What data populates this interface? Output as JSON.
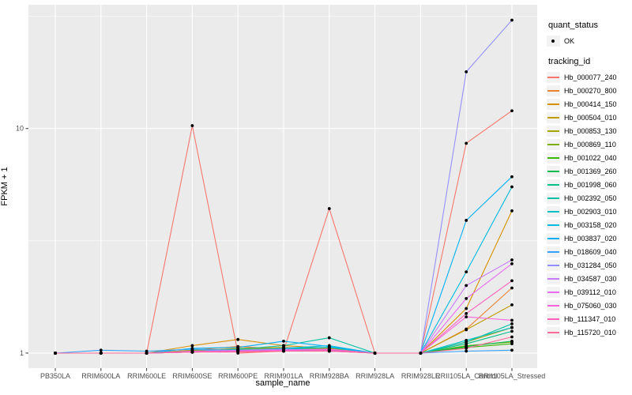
{
  "axes": {
    "xlabel": "sample_name",
    "ylabel": "FPKM + 1",
    "y_tick_labels": [
      "1",
      "10"
    ]
  },
  "legend": {
    "quant_status": {
      "title": "quant_status",
      "items": [
        {
          "label": "OK",
          "marker": "black-point"
        }
      ]
    },
    "tracking_id": {
      "title": "tracking_id"
    }
  },
  "chart_data": {
    "type": "line",
    "title": "",
    "xlabel": "sample_name",
    "ylabel": "FPKM + 1",
    "y_scale": "log10",
    "grid": true,
    "legend_position": "right",
    "panel_bg": "#EBEBEB",
    "grid_color": "#FFFFFF",
    "point_color": "#000000",
    "axis_text_color": "#4D4D4D",
    "y_ticks": [
      1,
      10
    ],
    "y_minor_ticks": [
      3.162,
      31.623
    ],
    "ylim": [
      0.857,
      35.6
    ],
    "x_categories": [
      "PB350LA",
      "RRIM600LA",
      "RRIM600LE",
      "RRIM600SE",
      "RRIM600PE",
      "RRIM901LA",
      "RRIM928BA",
      "RRIM928LA",
      "RRIM928LE",
      "RRII105LA_Control",
      "RRII105LA_Stressed"
    ],
    "series": [
      {
        "name": "Hb_000077_240",
        "color": "#F8766D",
        "values": [
          1,
          1,
          1,
          10.3,
          1,
          1.02,
          4.4,
          1,
          1,
          8.6,
          12.0
        ]
      },
      {
        "name": "Hb_000270_800",
        "color": "#EA8331",
        "values": [
          1,
          1,
          1,
          1.03,
          1.07,
          1.04,
          1.05,
          1,
          1,
          1.28,
          1.95
        ]
      },
      {
        "name": "Hb_000414_150",
        "color": "#D89000",
        "values": [
          1,
          1,
          1,
          1.08,
          1.15,
          1.08,
          1.05,
          1,
          1,
          1.58,
          4.3
        ]
      },
      {
        "name": "Hb_000504_010",
        "color": "#C09B00",
        "values": [
          1,
          1,
          1,
          1.02,
          1.05,
          1.06,
          1.04,
          1,
          1,
          1.27,
          1.64
        ]
      },
      {
        "name": "Hb_000853_130",
        "color": "#A3A500",
        "values": [
          1,
          1,
          1,
          1.03,
          1.04,
          1.05,
          1.06,
          1,
          1,
          1.12,
          1.3
        ]
      },
      {
        "name": "Hb_000869_110",
        "color": "#7CAE00",
        "values": [
          1,
          1,
          1,
          1.02,
          1.03,
          1.03,
          1.04,
          1,
          1,
          1.08,
          1.12
        ]
      },
      {
        "name": "Hb_001022_040",
        "color": "#39B600",
        "values": [
          1,
          1,
          1,
          1.01,
          1.02,
          1.03,
          1.02,
          1,
          1,
          1.06,
          1.1
        ]
      },
      {
        "name": "Hb_001369_260",
        "color": "#00BB4E",
        "values": [
          1,
          1,
          1,
          1.02,
          1.02,
          1.04,
          1.03,
          1,
          1,
          1.07,
          1.13
        ]
      },
      {
        "name": "Hb_001998_060",
        "color": "#00C087",
        "values": [
          1,
          1,
          1,
          1.01,
          1.03,
          1.05,
          1.06,
          1,
          1,
          1.1,
          1.25
        ]
      },
      {
        "name": "Hb_002392_050",
        "color": "#00C1A3",
        "values": [
          1,
          1,
          1,
          1.02,
          1.04,
          1.08,
          1.17,
          1,
          1,
          1.12,
          1.35
        ]
      },
      {
        "name": "Hb_002903_010",
        "color": "#00BFC4",
        "values": [
          1,
          1,
          1,
          1.01,
          1.02,
          1.04,
          1.06,
          1,
          1,
          1.14,
          1.3
        ]
      },
      {
        "name": "Hb_003158_020",
        "color": "#00BAE0",
        "values": [
          1,
          1,
          1,
          1.02,
          1.03,
          1.05,
          1.08,
          1,
          1,
          2.3,
          5.5
        ]
      },
      {
        "name": "Hb_003837_020",
        "color": "#00B0F6",
        "values": [
          1,
          1,
          1,
          1.05,
          1.06,
          1.13,
          1.07,
          1,
          1,
          3.9,
          6.1
        ]
      },
      {
        "name": "Hb_018609_040",
        "color": "#35A2FF",
        "values": [
          1,
          1.03,
          1.02,
          1.04,
          1.03,
          1.02,
          1.02,
          1,
          1,
          1.02,
          1.03
        ]
      },
      {
        "name": "Hb_031284_050",
        "color": "#9590FF",
        "values": [
          1,
          1,
          1,
          1.01,
          1.02,
          1.02,
          1.03,
          1,
          1,
          17.9,
          30.4
        ]
      },
      {
        "name": "Hb_034587_030",
        "color": "#C77CFF",
        "values": [
          1,
          1,
          1,
          1.02,
          1.03,
          1.04,
          1.03,
          1,
          1,
          2.0,
          2.6
        ]
      },
      {
        "name": "Hb_039112_010",
        "color": "#E76BF3",
        "values": [
          1,
          1,
          1,
          1.01,
          1.02,
          1.03,
          1.04,
          1,
          1,
          1.75,
          2.5
        ]
      },
      {
        "name": "Hb_075060_030",
        "color": "#FA62DB",
        "values": [
          1,
          1,
          1,
          1.02,
          1.02,
          1.03,
          1.02,
          1,
          1,
          1.45,
          1.4
        ]
      },
      {
        "name": "Hb_111347_010",
        "color": "#FF62BC",
        "values": [
          1,
          1,
          1,
          1.01,
          1.02,
          1.02,
          1.03,
          1,
          1,
          1.5,
          2.1
        ]
      },
      {
        "name": "Hb_115720_010",
        "color": "#FF6A98",
        "values": [
          1,
          1,
          1,
          1.01,
          1.01,
          1.02,
          1.02,
          1,
          1,
          1.05,
          1.18
        ]
      }
    ]
  }
}
